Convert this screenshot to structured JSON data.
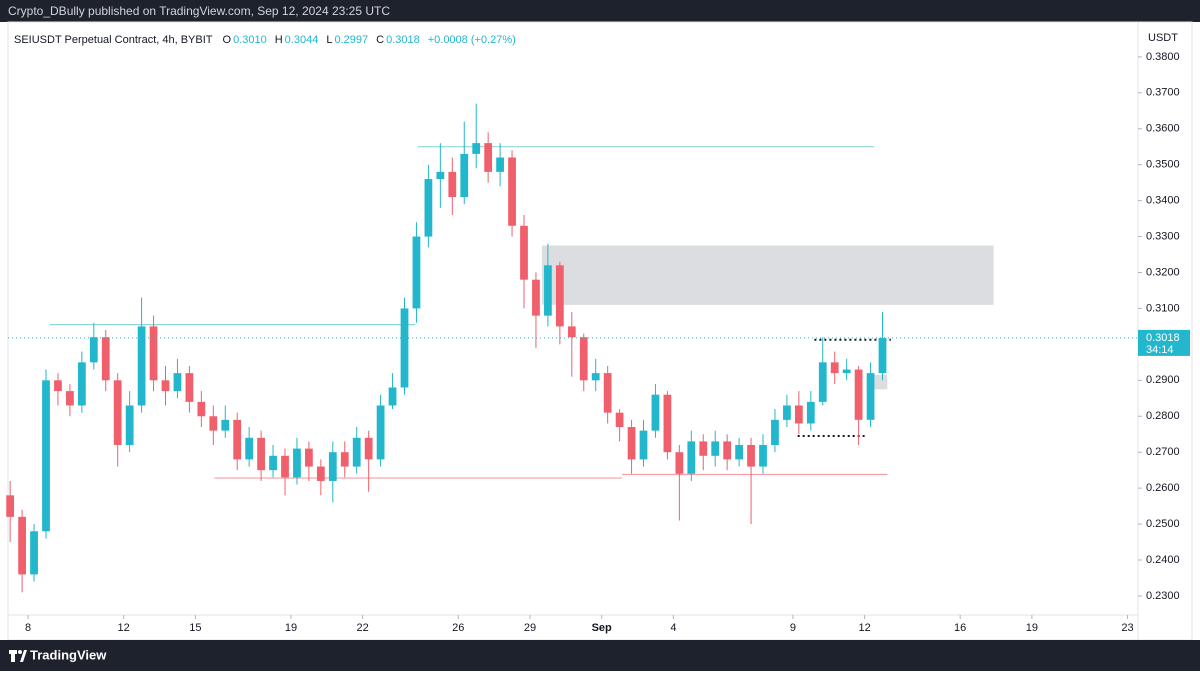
{
  "header": {
    "publisher": "Crypto_DBully published on TradingView.com, Sep 12, 2024 23:25 UTC"
  },
  "footer": {
    "brand": "TradingView"
  },
  "chart_data": {
    "type": "candlestick",
    "symbol": "SEIUSDT Perpetual Contract, 4h, BYBIT",
    "ohlc": [
      {
        "label": "O",
        "value": "0.3010"
      },
      {
        "label": "H",
        "value": "0.3044"
      },
      {
        "label": "L",
        "value": "0.2997"
      },
      {
        "label": "C",
        "value": "0.3018"
      }
    ],
    "change": "+0.0008 (+0.27%)",
    "currency": "USDT",
    "last_price": {
      "value": 0.3018,
      "label": "0.3018"
    },
    "countdown": "34:14",
    "up_color": "#22b7cc",
    "down_color": "#f0606c",
    "x": [
      -0.75,
      -0.25,
      0.25,
      0.75,
      1.25,
      1.75,
      2.25,
      2.75,
      3.25,
      3.75,
      4.25,
      4.75,
      5.25,
      5.75,
      6.25,
      6.75,
      7.25,
      7.75,
      8.25,
      8.75,
      9.25,
      9.75,
      10.25,
      10.75,
      11.25,
      11.75,
      12.25,
      12.75,
      13.25,
      13.75,
      14.25,
      14.75,
      15.25,
      15.75,
      16.25,
      16.75,
      17.25,
      17.75,
      18.25,
      18.75,
      19.25,
      19.75,
      20.25,
      20.75,
      21.25,
      21.75,
      22.25,
      22.75,
      23.25,
      23.75,
      24.25,
      24.75,
      25.25,
      25.75,
      26.25,
      26.75,
      27.25,
      27.75,
      28.25,
      28.75,
      29.25,
      29.75,
      30.25,
      30.75,
      31.25,
      31.75,
      32.25,
      32.75,
      33.25,
      33.75,
      34.25,
      34.75,
      35.25,
      35.75
    ],
    "open": [
      0.258,
      0.252,
      0.236,
      0.248,
      0.29,
      0.287,
      0.283,
      0.295,
      0.302,
      0.29,
      0.272,
      0.283,
      0.305,
      0.29,
      0.287,
      0.292,
      0.284,
      0.28,
      0.276,
      0.279,
      0.268,
      0.274,
      0.265,
      0.269,
      0.263,
      0.271,
      0.266,
      0.262,
      0.27,
      0.266,
      0.274,
      0.268,
      0.283,
      0.288,
      0.31,
      0.33,
      0.346,
      0.348,
      0.341,
      0.353,
      0.356,
      0.348,
      0.352,
      0.333,
      0.318,
      0.308,
      0.322,
      0.305,
      0.302,
      0.29,
      0.292,
      0.281,
      0.277,
      0.268,
      0.276,
      0.286,
      0.27,
      0.264,
      0.273,
      0.269,
      0.273,
      0.268,
      0.272,
      0.266,
      0.272,
      0.279,
      0.283,
      0.278,
      0.284,
      0.295,
      0.292,
      0.293,
      0.279,
      0.292
    ],
    "high": [
      0.262,
      0.254,
      0.25,
      0.293,
      0.292,
      0.289,
      0.298,
      0.306,
      0.304,
      0.292,
      0.287,
      0.313,
      0.308,
      0.294,
      0.296,
      0.294,
      0.287,
      0.283,
      0.283,
      0.281,
      0.277,
      0.276,
      0.272,
      0.271,
      0.274,
      0.273,
      0.268,
      0.273,
      0.273,
      0.277,
      0.276,
      0.286,
      0.292,
      0.313,
      0.334,
      0.35,
      0.356,
      0.352,
      0.362,
      0.367,
      0.359,
      0.356,
      0.354,
      0.336,
      0.32,
      0.328,
      0.323,
      0.309,
      0.303,
      0.296,
      0.294,
      0.282,
      0.279,
      0.279,
      0.289,
      0.287,
      0.272,
      0.276,
      0.275,
      0.276,
      0.275,
      0.274,
      0.274,
      0.275,
      0.282,
      0.286,
      0.287,
      0.287,
      0.302,
      0.298,
      0.296,
      0.294,
      0.295,
      0.309
    ],
    "low": [
      0.245,
      0.231,
      0.234,
      0.246,
      0.283,
      0.28,
      0.281,
      0.293,
      0.287,
      0.266,
      0.27,
      0.281,
      0.287,
      0.283,
      0.285,
      0.281,
      0.277,
      0.272,
      0.274,
      0.265,
      0.266,
      0.262,
      0.263,
      0.258,
      0.261,
      0.262,
      0.258,
      0.256,
      0.263,
      0.264,
      0.259,
      0.266,
      0.282,
      0.286,
      0.306,
      0.327,
      0.338,
      0.336,
      0.339,
      0.349,
      0.345,
      0.344,
      0.33,
      0.31,
      0.299,
      0.305,
      0.3,
      0.291,
      0.287,
      0.287,
      0.278,
      0.273,
      0.264,
      0.266,
      0.274,
      0.268,
      0.251,
      0.262,
      0.265,
      0.266,
      0.265,
      0.266,
      0.25,
      0.264,
      0.27,
      0.277,
      0.275,
      0.276,
      0.283,
      0.289,
      0.29,
      0.272,
      0.277,
      0.29
    ],
    "close": [
      0.252,
      0.236,
      0.248,
      0.29,
      0.287,
      0.283,
      0.295,
      0.302,
      0.29,
      0.272,
      0.283,
      0.305,
      0.29,
      0.287,
      0.292,
      0.284,
      0.28,
      0.276,
      0.279,
      0.268,
      0.274,
      0.265,
      0.269,
      0.263,
      0.271,
      0.266,
      0.262,
      0.27,
      0.266,
      0.274,
      0.268,
      0.283,
      0.288,
      0.31,
      0.33,
      0.346,
      0.348,
      0.341,
      0.353,
      0.356,
      0.348,
      0.352,
      0.333,
      0.318,
      0.308,
      0.322,
      0.305,
      0.302,
      0.29,
      0.292,
      0.281,
      0.277,
      0.268,
      0.276,
      0.286,
      0.27,
      0.264,
      0.273,
      0.269,
      0.273,
      0.268,
      0.272,
      0.266,
      0.272,
      0.279,
      0.283,
      0.278,
      0.284,
      0.295,
      0.292,
      0.293,
      0.279,
      0.292,
      0.3018
    ],
    "zones": [
      {
        "y": [
          0.311,
          0.3275
        ],
        "x": [
          21.5,
          40.4
        ],
        "color": "#dcdde0"
      },
      {
        "y": [
          0.2875,
          0.2915
        ],
        "x": [
          35.1,
          35.95
        ],
        "color": "#dcdde0"
      }
    ],
    "levels": [
      {
        "value": 0.3055,
        "x": [
          0.9,
          16.2
        ],
        "color": "#8fd4d8",
        "style": "solid"
      },
      {
        "value": 0.355,
        "x": [
          16.3,
          35.4
        ],
        "color": "#8fd4d8",
        "style": "solid"
      },
      {
        "value": 0.2628,
        "x": [
          7.8,
          24.85
        ],
        "color": "#f2a0a6",
        "style": "solid"
      },
      {
        "value": 0.2638,
        "x": [
          24.85,
          35.95
        ],
        "color": "#f2a0a6",
        "style": "solid"
      },
      {
        "value": 0.3013,
        "x": [
          32.9,
          36.1
        ],
        "color": "#131722",
        "style": "dotted"
      },
      {
        "value": 0.2745,
        "x": [
          32.2,
          35.0
        ],
        "color": "#131722",
        "style": "dotted"
      }
    ],
    "xlim": [
      -0.84,
      46.44
    ],
    "xticks": [
      {
        "value": 0,
        "label": "8"
      },
      {
        "value": 4,
        "label": "12"
      },
      {
        "value": 7,
        "label": "15"
      },
      {
        "value": 11,
        "label": "19"
      },
      {
        "value": 14,
        "label": "22"
      },
      {
        "value": 18,
        "label": "26"
      },
      {
        "value": 21,
        "label": "29"
      },
      {
        "value": 24,
        "label": "Sep"
      },
      {
        "value": 27,
        "label": "4"
      },
      {
        "value": 32,
        "label": "9"
      },
      {
        "value": 35,
        "label": "12"
      },
      {
        "value": 39,
        "label": "16"
      },
      {
        "value": 42,
        "label": "19"
      },
      {
        "value": 46,
        "label": "23"
      }
    ],
    "ylim": [
      0.2247,
      0.3897
    ],
    "yticks": [
      {
        "value": 0.23,
        "label": "0.2300"
      },
      {
        "value": 0.24,
        "label": "0.2400"
      },
      {
        "value": 0.25,
        "label": "0.2500"
      },
      {
        "value": 0.26,
        "label": "0.2600"
      },
      {
        "value": 0.27,
        "label": "0.2700"
      },
      {
        "value": 0.28,
        "label": "0.2800"
      },
      {
        "value": 0.29,
        "label": "0.2900"
      },
      {
        "value": 0.3,
        "label": "0.3000"
      },
      {
        "value": 0.31,
        "label": "0.3100"
      },
      {
        "value": 0.32,
        "label": "0.3200"
      },
      {
        "value": 0.33,
        "label": "0.3300"
      },
      {
        "value": 0.34,
        "label": "0.3400"
      },
      {
        "value": 0.35,
        "label": "0.3500"
      },
      {
        "value": 0.36,
        "label": "0.3600"
      },
      {
        "value": 0.37,
        "label": "0.3700"
      },
      {
        "value": 0.38,
        "label": "0.3800"
      }
    ]
  }
}
